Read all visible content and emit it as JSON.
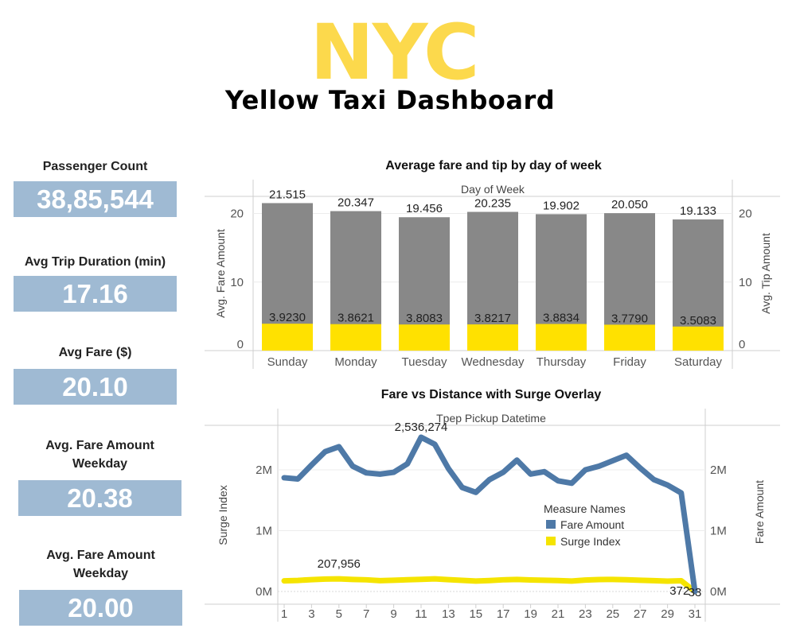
{
  "header": {
    "logo_main": "NYC",
    "logo_sub": "Yellow Taxi Dashboard"
  },
  "kpis": [
    {
      "label": "Passenger Count",
      "value": "38,85,544"
    },
    {
      "label": "Avg Trip Duration (min)",
      "value": "17.16"
    },
    {
      "label": "Avg Fare ($)",
      "value": "20.10"
    },
    {
      "label": "Avg. Fare Amount Weekday",
      "value": "20.38"
    },
    {
      "label": "Avg. Fare Amount Weekday",
      "value": "20.00"
    }
  ],
  "colors": {
    "kpi_box": "#9FBAD3",
    "fare_bar": "#888888",
    "tip_bar": "#FFE100",
    "fare_line": "#4E79A7",
    "surge_line": "#F5E400",
    "logo_yellow": "#FCD94C"
  },
  "chart_data": [
    {
      "type": "bar",
      "title": "Average fare and tip by day of week",
      "column_header": "Day of Week",
      "categories": [
        "Sunday",
        "Monday",
        "Tuesday",
        "Wednesday",
        "Thursday",
        "Friday",
        "Saturday"
      ],
      "series": [
        {
          "name": "Avg. Fare Amount",
          "values": [
            21.515,
            20.347,
            19.456,
            20.235,
            19.902,
            20.05,
            19.133
          ],
          "labels": [
            "21.515",
            "20.347",
            "19.456",
            "20.235",
            "19.902",
            "20.050",
            "19.133"
          ]
        },
        {
          "name": "Avg. Tip Amount",
          "values": [
            3.923,
            3.8621,
            3.8083,
            3.8217,
            3.8834,
            3.779,
            3.5083
          ],
          "labels": [
            "3.9230",
            "3.8621",
            "3.8083",
            "3.8217",
            "3.8834",
            "3.7790",
            "3.5083"
          ]
        }
      ],
      "ylabel": "Avg. Fare Amount",
      "y2label": "Avg. Tip Amount",
      "ylim": [
        0,
        22.5
      ],
      "yticks": [
        0,
        10,
        20
      ],
      "yticks_labels": [
        "0",
        "10",
        "20"
      ],
      "y2ticks_labels": [
        "0",
        "10",
        "20"
      ],
      "layout": "dual-axis overlapping bars"
    },
    {
      "type": "line",
      "title": "Fare vs Distance with Surge Overlay",
      "column_header": "Tpep Pickup Datetime",
      "x": [
        1,
        2,
        3,
        4,
        5,
        6,
        7,
        8,
        9,
        10,
        11,
        12,
        13,
        14,
        15,
        16,
        17,
        18,
        19,
        20,
        21,
        22,
        23,
        24,
        25,
        26,
        27,
        28,
        29,
        30,
        31
      ],
      "xticks": [
        "1",
        "3",
        "5",
        "7",
        "9",
        "11",
        "13",
        "15",
        "17",
        "19",
        "21",
        "23",
        "25",
        "27",
        "29",
        "31"
      ],
      "ylabel": "Surge Index",
      "y2label": "Fare Amount",
      "ylim": [
        0,
        2800000
      ],
      "yticks": [
        0,
        1000000,
        2000000
      ],
      "yticks_labels": [
        "0M",
        "1M",
        "2M"
      ],
      "y2ticks_labels": [
        "0M",
        "1M",
        "2M"
      ],
      "legend": {
        "title": "Measure Names",
        "position": "right-center"
      },
      "series": [
        {
          "name": "Fare Amount",
          "values": [
            1870000,
            1850000,
            2080000,
            2300000,
            2380000,
            2060000,
            1950000,
            1930000,
            1960000,
            2100000,
            2536274,
            2420000,
            2020000,
            1710000,
            1630000,
            1840000,
            1960000,
            2160000,
            1930000,
            1970000,
            1820000,
            1780000,
            2000000,
            2060000,
            2150000,
            2240000,
            2030000,
            1840000,
            1750000,
            1620000,
            33
          ],
          "annotations": [
            {
              "x": 11,
              "label": "2,536,274"
            },
            {
              "x": 31,
              "label": "33"
            }
          ]
        },
        {
          "name": "Surge Index",
          "values": [
            175000,
            182000,
            195000,
            205000,
            207956,
            198000,
            192000,
            178000,
            184000,
            193000,
            200000,
            207000,
            195000,
            183000,
            172000,
            180000,
            192000,
            197000,
            190000,
            185000,
            180000,
            172000,
            188000,
            196000,
            198000,
            193000,
            185000,
            178000,
            170000,
            176000,
            372
          ],
          "annotations": [
            {
              "x": 5,
              "label": "207,956"
            },
            {
              "x": 31,
              "label": "372"
            }
          ]
        }
      ]
    }
  ]
}
